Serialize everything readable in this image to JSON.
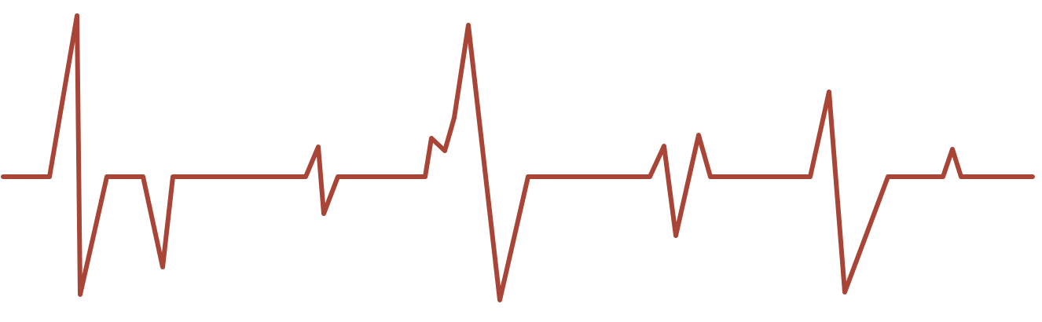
{
  "graphic": {
    "icon": "heartbeat-waveform-icon",
    "stroke_color": "#a84536",
    "background_color": "#ffffff"
  }
}
